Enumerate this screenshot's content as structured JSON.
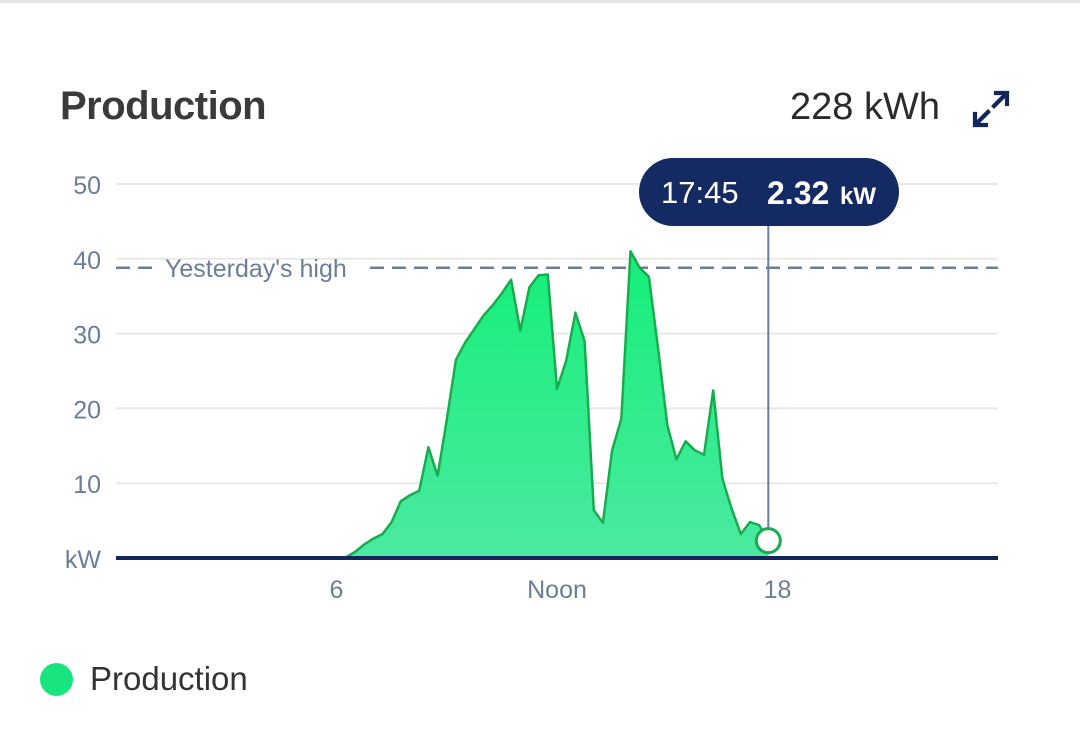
{
  "header": {
    "title": "Production",
    "total": "228 kWh",
    "expand_icon": "expand-arrows-icon"
  },
  "tooltip": {
    "time": "17:45",
    "value": "2.32",
    "unit": "kW"
  },
  "reference_line": {
    "label": "Yesterday's high",
    "value": 38.8
  },
  "legend": {
    "label": "Production"
  },
  "colors": {
    "fill_top": "#14ef78",
    "fill_bottom": "#4ce9a2",
    "stroke": "#17ad4f",
    "axis": "#13265c",
    "tooltip_bg": "#142a62",
    "tick_text": "#6b7d98",
    "legend_dot": "#19e57f"
  },
  "chart_data": {
    "type": "area",
    "xlabel": "",
    "ylabel": "kW",
    "ylim": [
      0,
      50
    ],
    "xlim": [
      0,
      24
    ],
    "y_ticks": [
      {
        "value": 0,
        "label": "kW"
      },
      {
        "value": 10,
        "label": "10"
      },
      {
        "value": 20,
        "label": "20"
      },
      {
        "value": 30,
        "label": "30"
      },
      {
        "value": 40,
        "label": "40"
      },
      {
        "value": 50,
        "label": "50"
      }
    ],
    "x_ticks": [
      {
        "value": 6,
        "label": "6"
      },
      {
        "value": 12,
        "label": "Noon"
      },
      {
        "value": 18,
        "label": "18"
      }
    ],
    "grid": true,
    "series": [
      {
        "name": "Production",
        "points": [
          [
            5.75,
            0.0
          ],
          [
            6.25,
            0.1
          ],
          [
            6.5,
            0.8
          ],
          [
            6.75,
            1.8
          ],
          [
            7.0,
            2.6
          ],
          [
            7.25,
            3.2
          ],
          [
            7.5,
            4.8
          ],
          [
            7.75,
            7.6
          ],
          [
            8.0,
            8.4
          ],
          [
            8.25,
            9.0
          ],
          [
            8.5,
            14.8
          ],
          [
            8.75,
            11.0
          ],
          [
            9.0,
            18.5
          ],
          [
            9.25,
            26.5
          ],
          [
            9.5,
            28.8
          ],
          [
            9.75,
            30.6
          ],
          [
            10.0,
            32.4
          ],
          [
            10.25,
            33.8
          ],
          [
            10.5,
            35.4
          ],
          [
            10.75,
            37.2
          ],
          [
            11.0,
            30.4
          ],
          [
            11.25,
            36.2
          ],
          [
            11.5,
            37.8
          ],
          [
            11.75,
            37.9
          ],
          [
            12.0,
            22.6
          ],
          [
            12.25,
            26.4
          ],
          [
            12.5,
            32.8
          ],
          [
            12.75,
            29.0
          ],
          [
            13.0,
            6.4
          ],
          [
            13.25,
            4.7
          ],
          [
            13.5,
            14.4
          ],
          [
            13.75,
            18.6
          ],
          [
            14.0,
            41.0
          ],
          [
            14.25,
            38.8
          ],
          [
            14.5,
            37.6
          ],
          [
            14.75,
            28.0
          ],
          [
            15.0,
            17.8
          ],
          [
            15.25,
            13.2
          ],
          [
            15.5,
            15.6
          ],
          [
            15.75,
            14.4
          ],
          [
            16.0,
            13.8
          ],
          [
            16.25,
            22.4
          ],
          [
            16.5,
            10.6
          ],
          [
            16.75,
            6.6
          ],
          [
            17.0,
            3.2
          ],
          [
            17.25,
            4.8
          ],
          [
            17.5,
            4.4
          ],
          [
            17.75,
            2.32
          ]
        ]
      }
    ],
    "annotations": [
      {
        "x": 17.75,
        "y": 2.32,
        "text": "17:45 2.32 kW"
      }
    ]
  }
}
